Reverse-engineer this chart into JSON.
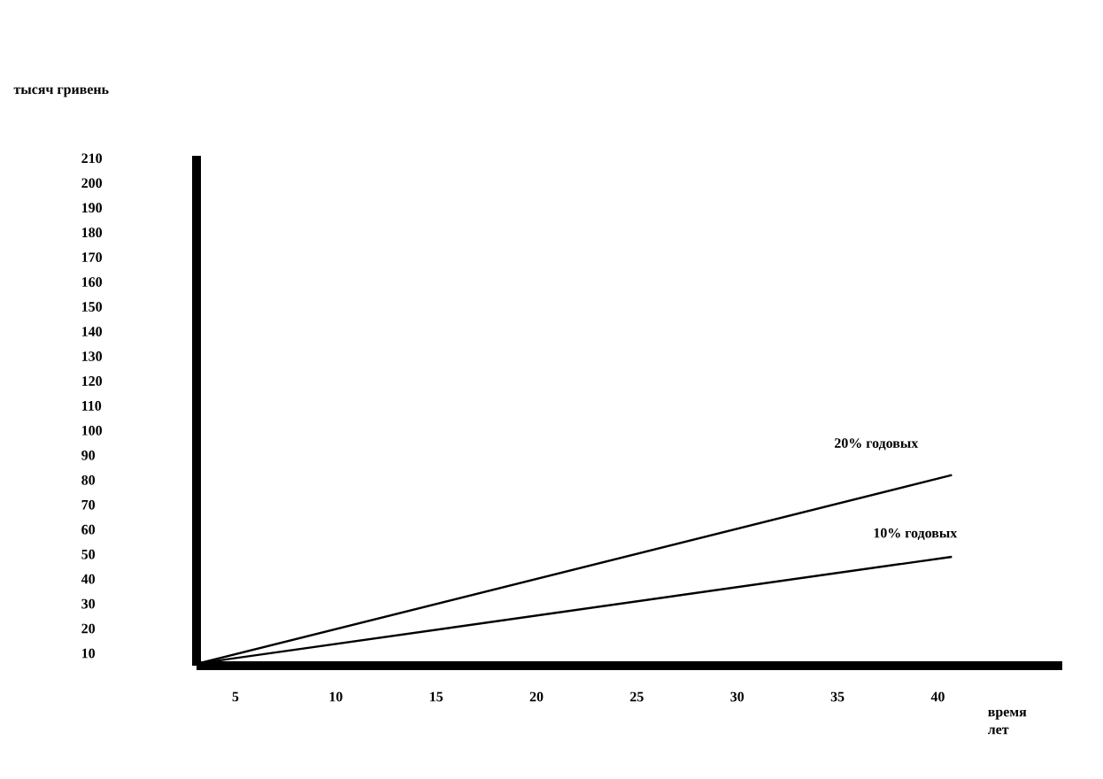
{
  "chart_data": {
    "type": "line",
    "xlabel": "время лет",
    "ylabel": "тысяч гривень",
    "xlim": [
      3.06,
      46.2
    ],
    "ylim": [
      5,
      211
    ],
    "xticks": [
      5,
      10,
      15,
      20,
      25,
      30,
      35,
      40
    ],
    "yticks": [
      10,
      20,
      30,
      40,
      50,
      60,
      70,
      80,
      90,
      100,
      110,
      120,
      130,
      140,
      150,
      160,
      170,
      180,
      190,
      200,
      210
    ],
    "grid": false,
    "legend": false,
    "x": [
      3.2,
      40.7
    ],
    "series": [
      {
        "name": "20% годовых",
        "color": "#000000",
        "values": [
          6,
          82
        ]
      },
      {
        "name": "10% годовых",
        "color": "#000000",
        "values": [
          6,
          49
        ]
      }
    ]
  }
}
